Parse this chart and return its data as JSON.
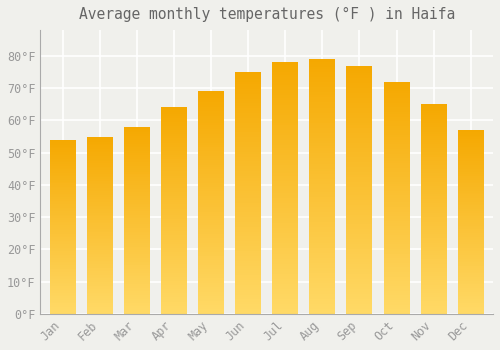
{
  "title": "Average monthly temperatures (°F ) in Haifa",
  "months": [
    "Jan",
    "Feb",
    "Mar",
    "Apr",
    "May",
    "Jun",
    "Jul",
    "Aug",
    "Sep",
    "Oct",
    "Nov",
    "Dec"
  ],
  "values": [
    54,
    55,
    58,
    64,
    69,
    75,
    78,
    79,
    77,
    72,
    65,
    57
  ],
  "bar_color_top": "#F5A800",
  "bar_color_bottom": "#FFD966",
  "ylim": [
    0,
    88
  ],
  "yticks": [
    0,
    10,
    20,
    30,
    40,
    50,
    60,
    70,
    80
  ],
  "ytick_labels": [
    "0°F",
    "10°F",
    "20°F",
    "30°F",
    "40°F",
    "50°F",
    "60°F",
    "70°F",
    "80°F"
  ],
  "background_color": "#f0f0ec",
  "grid_color": "#ffffff",
  "title_fontsize": 10.5,
  "tick_fontsize": 8.5,
  "tick_color": "#999999",
  "font_family": "monospace",
  "bar_width": 0.7
}
